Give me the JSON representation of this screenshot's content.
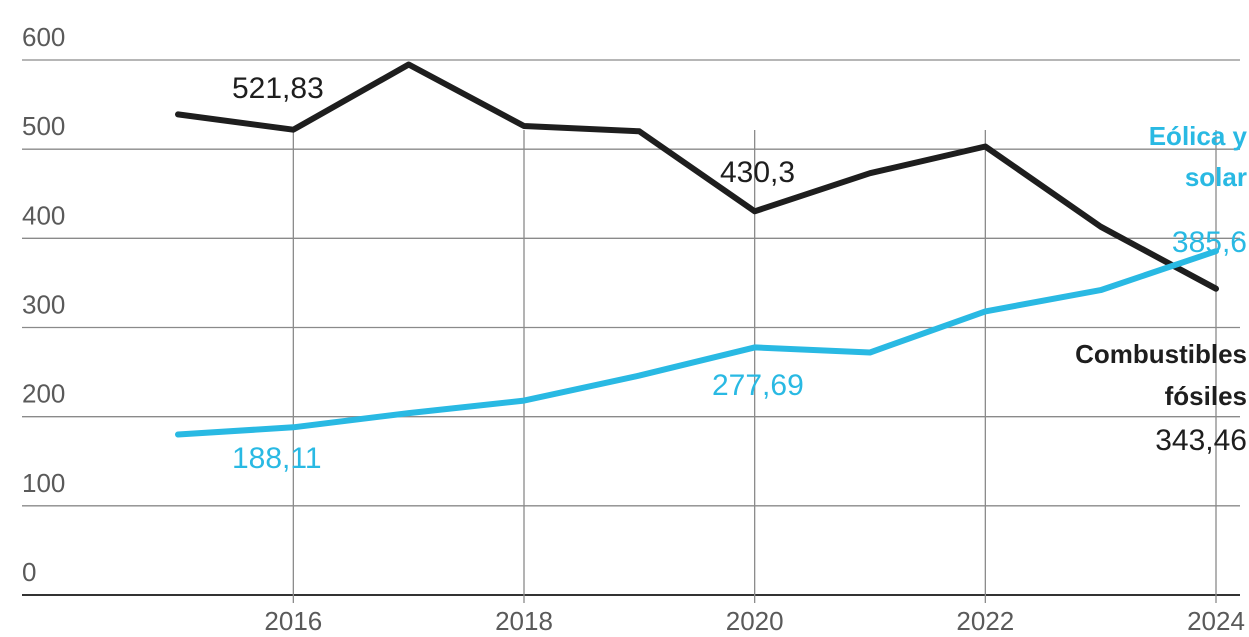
{
  "chart_data": {
    "type": "line",
    "title": "",
    "xlabel": "",
    "ylabel": "",
    "x": [
      2015,
      2016,
      2017,
      2018,
      2019,
      2020,
      2021,
      2022,
      2023,
      2024
    ],
    "xticks": [
      "2016",
      "2018",
      "2020",
      "2022",
      "2024"
    ],
    "yticks": [
      "0",
      "100",
      "200",
      "300",
      "400",
      "500",
      "600"
    ],
    "ylim": [
      0,
      600
    ],
    "grid": true,
    "legend": "none",
    "series": [
      {
        "name": "Combustibles fósiles",
        "name_lines": [
          "Combustibles",
          "fósiles"
        ],
        "color": "#1e1e1e",
        "values": [
          539,
          521.83,
          595,
          526,
          520,
          430.3,
          473,
          503,
          413,
          343.46
        ],
        "annotations": [
          {
            "x": 2016,
            "text": "521,83"
          },
          {
            "x": 2020,
            "text": "430,3"
          },
          {
            "x": 2024,
            "text": "343,46"
          }
        ]
      },
      {
        "name": "Eólica y solar",
        "name_lines": [
          "Eólica y",
          "solar"
        ],
        "color": "#29b9e3",
        "values": [
          180,
          188.11,
          204,
          218,
          246,
          277.69,
          272,
          318,
          342,
          385.6
        ],
        "annotations": [
          {
            "x": 2016,
            "text": "188,11"
          },
          {
            "x": 2020,
            "text": "277,69"
          },
          {
            "x": 2024,
            "text": "385,6"
          }
        ]
      }
    ]
  }
}
